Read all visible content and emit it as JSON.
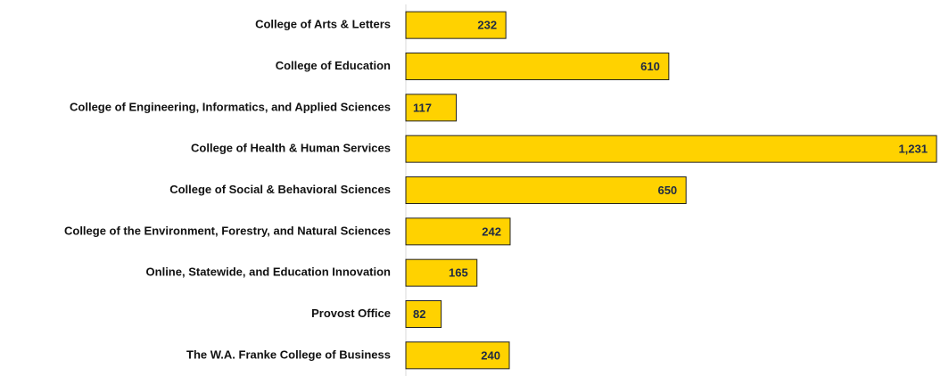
{
  "chart_data": {
    "type": "bar",
    "orientation": "horizontal",
    "categories": [
      "College of Arts & Letters",
      "College of Education",
      "College of Engineering, Informatics, and Applied Sciences",
      "College of Health & Human Services",
      "College of Social & Behavioral Sciences",
      "College of the Environment, Forestry, and Natural Sciences",
      "Online, Statewide, and Education Innovation",
      "Provost Office",
      "The W.A. Franke College of Business"
    ],
    "values": [
      232,
      610,
      117,
      1231,
      650,
      242,
      165,
      82,
      240
    ],
    "value_labels": [
      "232",
      "610",
      "117",
      "1,231",
      "650",
      "242",
      "165",
      "82",
      "240"
    ],
    "color": "#ffd200"
  }
}
